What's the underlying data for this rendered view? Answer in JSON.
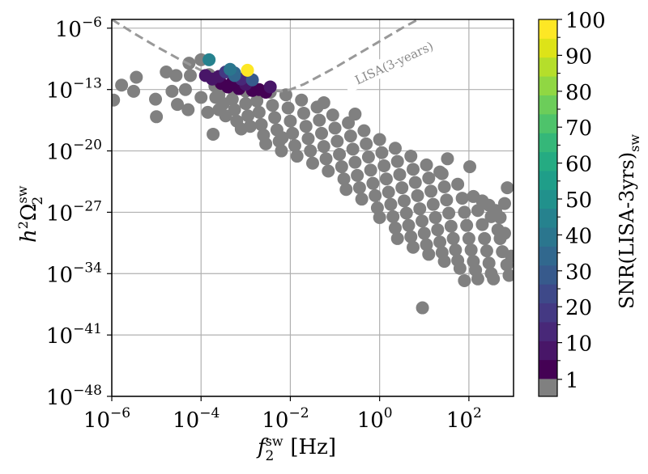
{
  "chart_data": {
    "type": "scatter",
    "title": "",
    "xlabel": "f_2^sw [Hz]",
    "xlabel_main": "f",
    "xlabel_sub": "2",
    "xlabel_sup": "sw",
    "xlabel_unit": "[Hz]",
    "ylabel": "h^2 Ω_2^sw",
    "ylabel_main": "h",
    "ylabel_sup1": "2",
    "ylabel_omega": "Ω",
    "ylabel_sub": "2",
    "ylabel_sup2": "sw",
    "xscale": "log",
    "yscale": "log",
    "xlim_log10": [
      -6,
      3
    ],
    "ylim_log10": [
      -48,
      -5
    ],
    "grid": true,
    "x_ticks": [
      {
        "base": "10",
        "exp": "−6",
        "log10": -6
      },
      {
        "base": "10",
        "exp": "−4",
        "log10": -4
      },
      {
        "base": "10",
        "exp": "−2",
        "log10": -2
      },
      {
        "base": "10",
        "exp": "0",
        "log10": 0
      },
      {
        "base": "10",
        "exp": "2",
        "log10": 2
      }
    ],
    "y_ticks": [
      {
        "base": "10",
        "exp": "−6",
        "log10": -6
      },
      {
        "base": "10",
        "exp": "−13",
        "log10": -13
      },
      {
        "base": "10",
        "exp": "−20",
        "log10": -20
      },
      {
        "base": "10",
        "exp": "−27",
        "log10": -27
      },
      {
        "base": "10",
        "exp": "−34",
        "log10": -34
      },
      {
        "base": "10",
        "exp": "−41",
        "log10": -41
      },
      {
        "base": "10",
        "exp": "−48",
        "log10": -48
      }
    ],
    "lisa_curve": {
      "label": "LISA(3-years)",
      "color": "#999999",
      "points_log10": [
        [
          -6.0,
          -5.0
        ],
        [
          -5.5,
          -6.6
        ],
        [
          -5.0,
          -8.1
        ],
        [
          -4.5,
          -9.5
        ],
        [
          -4.0,
          -10.8
        ],
        [
          -3.5,
          -11.9
        ],
        [
          -3.0,
          -12.7
        ],
        [
          -2.5,
          -13.1
        ],
        [
          -2.2,
          -13.2
        ],
        [
          -2.0,
          -13.0
        ],
        [
          -1.7,
          -12.4
        ],
        [
          -1.4,
          -11.6
        ],
        [
          -1.0,
          -10.5
        ],
        [
          -0.5,
          -9.0
        ],
        [
          0.0,
          -7.5
        ],
        [
          0.5,
          -6.0
        ],
        [
          0.9,
          -4.9
        ]
      ]
    },
    "colorbar": {
      "label_main": "SNR(LISA-3yrs)",
      "label_sub": "sw",
      "colormap": "viridis",
      "ticks": [
        "1",
        "10",
        "20",
        "30",
        "40",
        "50",
        "60",
        "70",
        "80",
        "90",
        "100"
      ],
      "tick_values": [
        1,
        10,
        20,
        30,
        40,
        50,
        60,
        70,
        80,
        90,
        100
      ],
      "below_threshold_color": "#808080",
      "band_colors": [
        "#808080",
        "#440154",
        "#481668",
        "#482878",
        "#443983",
        "#3e4989",
        "#375a8c",
        "#31688e",
        "#2b768e",
        "#26828e",
        "#21918c",
        "#1f9e89",
        "#25ab82",
        "#35b779",
        "#4ec36b",
        "#6ccd5a",
        "#90d743",
        "#b5de2b",
        "#dde318",
        "#fde725"
      ]
    },
    "gray_color": "#808080",
    "series_below_threshold": {
      "name": "SNR < 1",
      "points_log10": [
        [
          -5.96,
          -14.2
        ],
        [
          -5.78,
          -12.5
        ],
        [
          -5.51,
          -13.2
        ],
        [
          -5.45,
          -11.6
        ],
        [
          -5.02,
          -14.1
        ],
        [
          -5.0,
          -16.1
        ],
        [
          -4.78,
          -11.0
        ],
        [
          -4.65,
          -13.2
        ],
        [
          -4.56,
          -11.4
        ],
        [
          -4.53,
          -14.7
        ],
        [
          -4.27,
          -10.0
        ],
        [
          -4.35,
          -13.0
        ],
        [
          -4.24,
          -11.4
        ],
        [
          -4.29,
          -15.3
        ],
        [
          -4.0,
          -13.9
        ],
        [
          -3.82,
          -11.3
        ],
        [
          -4.0,
          -9.6
        ],
        [
          -3.67,
          -13.9
        ],
        [
          -3.6,
          -15.3
        ],
        [
          -3.73,
          -18.1
        ],
        [
          -3.85,
          -15.6
        ],
        [
          -3.69,
          -12.6
        ],
        [
          -3.6,
          -13.6
        ],
        [
          -3.5,
          -14.6
        ],
        [
          -3.45,
          -16.0
        ],
        [
          -3.3,
          -12.9
        ],
        [
          -3.3,
          -14.1
        ],
        [
          -3.25,
          -15.3
        ],
        [
          -3.2,
          -16.6
        ],
        [
          -3.1,
          -17.5
        ],
        [
          -3.0,
          -13.2
        ],
        [
          -3.0,
          -14.6
        ],
        [
          -2.95,
          -16.0
        ],
        [
          -2.9,
          -17.2
        ],
        [
          -2.8,
          -13.0
        ],
        [
          -2.75,
          -14.3
        ],
        [
          -2.7,
          -15.6
        ],
        [
          -2.65,
          -17.0
        ],
        [
          -2.6,
          -18.2
        ],
        [
          -2.55,
          -19.2
        ],
        [
          -2.45,
          -13.3
        ],
        [
          -2.4,
          -14.8
        ],
        [
          -2.35,
          -16.2
        ],
        [
          -2.3,
          -17.6
        ],
        [
          -2.25,
          -18.9
        ],
        [
          -2.2,
          -20.0
        ],
        [
          -2.1,
          -13.6
        ],
        [
          -2.05,
          -15.1
        ],
        [
          -2.0,
          -16.6
        ],
        [
          -1.95,
          -18.0
        ],
        [
          -1.9,
          -19.4
        ],
        [
          -1.85,
          -20.6
        ],
        [
          -1.75,
          -14.2
        ],
        [
          -1.7,
          -15.7
        ],
        [
          -1.65,
          -17.2
        ],
        [
          -1.6,
          -18.6
        ],
        [
          -1.55,
          -20.0
        ],
        [
          -1.5,
          -21.4
        ],
        [
          -1.4,
          -15.0
        ],
        [
          -1.35,
          -16.5
        ],
        [
          -1.3,
          -18.0
        ],
        [
          -1.25,
          -19.5
        ],
        [
          -1.2,
          -20.9
        ],
        [
          -1.15,
          -22.3
        ],
        [
          -1.05,
          -15.9
        ],
        [
          -1.0,
          -17.4
        ],
        [
          -0.95,
          -18.9
        ],
        [
          -0.9,
          -20.4
        ],
        [
          -0.85,
          -21.8
        ],
        [
          -0.8,
          -23.2
        ],
        [
          -0.75,
          -24.4
        ],
        [
          -0.7,
          -16.8
        ],
        [
          -0.65,
          -18.3
        ],
        [
          -0.6,
          -19.8
        ],
        [
          -0.55,
          -21.3
        ],
        [
          -0.5,
          -22.8
        ],
        [
          -0.45,
          -24.2
        ],
        [
          -0.4,
          -25.5
        ],
        [
          -0.35,
          -17.7
        ],
        [
          -0.3,
          -19.2
        ],
        [
          -0.25,
          -20.7
        ],
        [
          -0.2,
          -22.2
        ],
        [
          -0.15,
          -23.7
        ],
        [
          -0.1,
          -25.1
        ],
        [
          -0.05,
          -26.5
        ],
        [
          0.0,
          -27.6
        ],
        [
          0.0,
          -18.7
        ],
        [
          0.05,
          -20.2
        ],
        [
          0.1,
          -21.7
        ],
        [
          0.15,
          -23.2
        ],
        [
          0.2,
          -24.7
        ],
        [
          0.25,
          -26.1
        ],
        [
          0.3,
          -27.5
        ],
        [
          0.35,
          -28.8
        ],
        [
          0.4,
          -30.0
        ],
        [
          0.35,
          -19.7
        ],
        [
          0.4,
          -21.2
        ],
        [
          0.45,
          -22.7
        ],
        [
          0.5,
          -24.2
        ],
        [
          0.55,
          -25.7
        ],
        [
          0.6,
          -27.1
        ],
        [
          0.65,
          -28.5
        ],
        [
          0.7,
          -29.8
        ],
        [
          0.75,
          -31.0
        ],
        [
          0.7,
          -20.6
        ],
        [
          0.75,
          -22.1
        ],
        [
          0.8,
          -23.6
        ],
        [
          0.85,
          -25.1
        ],
        [
          0.9,
          -26.6
        ],
        [
          0.95,
          -28.0
        ],
        [
          1.0,
          -29.4
        ],
        [
          1.05,
          -30.7
        ],
        [
          1.1,
          -31.8
        ],
        [
          1.05,
          -21.6
        ],
        [
          1.1,
          -23.1
        ],
        [
          1.15,
          -24.6
        ],
        [
          1.2,
          -26.1
        ],
        [
          1.25,
          -27.6
        ],
        [
          1.3,
          -29.0
        ],
        [
          1.35,
          -30.4
        ],
        [
          1.4,
          -31.6
        ],
        [
          1.45,
          -32.6
        ],
        [
          1.4,
          -22.6
        ],
        [
          1.45,
          -24.1
        ],
        [
          1.5,
          -25.6
        ],
        [
          1.55,
          -27.1
        ],
        [
          1.6,
          -28.6
        ],
        [
          1.65,
          -30.0
        ],
        [
          1.7,
          -31.3
        ],
        [
          1.75,
          -32.5
        ],
        [
          1.8,
          -33.4
        ],
        [
          1.75,
          -23.8
        ],
        [
          1.85,
          -25.4
        ],
        [
          1.9,
          -27.0
        ],
        [
          1.95,
          -28.5
        ],
        [
          2.0,
          -30.0
        ],
        [
          2.05,
          -31.3
        ],
        [
          2.1,
          -32.6
        ],
        [
          2.15,
          -33.6
        ],
        [
          2.1,
          -25.2
        ],
        [
          2.2,
          -26.8
        ],
        [
          2.3,
          -28.4
        ],
        [
          2.35,
          -30.0
        ],
        [
          2.4,
          -31.4
        ],
        [
          2.45,
          -32.8
        ],
        [
          2.5,
          -34.0
        ],
        [
          2.45,
          -26.2
        ],
        [
          2.6,
          -26.8
        ],
        [
          2.7,
          -27.6
        ],
        [
          2.8,
          -26.0
        ],
        [
          2.7,
          -30.0
        ],
        [
          2.75,
          -31.5
        ],
        [
          2.85,
          -33.0
        ],
        [
          2.9,
          -34.2
        ],
        [
          2.95,
          -32.0
        ],
        [
          2.3,
          -25.7
        ],
        [
          2.5,
          -27.5
        ],
        [
          2.65,
          -29.0
        ],
        [
          2.8,
          -29.4
        ],
        [
          1.35,
          -22.4
        ],
        [
          2.55,
          -34.6
        ],
        [
          -2.18,
          -18.5
        ],
        [
          0.96,
          -37.9
        ],
        [
          1.52,
          -20.9
        ],
        [
          2.02,
          -21.8
        ],
        [
          2.86,
          -24.2
        ],
        [
          -0.55,
          -15.8
        ],
        [
          -1.25,
          -14.5
        ],
        [
          1.9,
          -34.8
        ],
        [
          2.2,
          -34.6
        ]
      ]
    },
    "series_snr": {
      "name": "SNR ≥ 1",
      "points": [
        {
          "log10_f": -3.9,
          "log10_h2omega": -11.4,
          "snr": 8
        },
        {
          "log10_f": -3.75,
          "log10_h2omega": -11.8,
          "snr": 6
        },
        {
          "log10_f": -3.6,
          "log10_h2omega": -11.5,
          "snr": 9
        },
        {
          "log10_f": -3.55,
          "log10_h2omega": -12.3,
          "snr": 3
        },
        {
          "log10_f": -3.45,
          "log10_h2omega": -11.0,
          "snr": 18
        },
        {
          "log10_f": -3.4,
          "log10_h2omega": -12.7,
          "snr": 4
        },
        {
          "log10_f": -3.3,
          "log10_h2omega": -12.2,
          "snr": 5
        },
        {
          "log10_f": -3.25,
          "log10_h2omega": -11.4,
          "snr": 35
        },
        {
          "log10_f": -3.15,
          "log10_h2omega": -12.9,
          "snr": 3
        },
        {
          "log10_f": -3.1,
          "log10_h2omega": -11.8,
          "snr": 12
        },
        {
          "log10_f": -3.0,
          "log10_h2omega": -12.4,
          "snr": 7
        },
        {
          "log10_f": -2.85,
          "log10_h2omega": -13.1,
          "snr": 4
        },
        {
          "log10_f": -2.85,
          "log10_h2omega": -11.9,
          "snr": 28
        },
        {
          "log10_f": -2.7,
          "log10_h2omega": -13.0,
          "snr": 5
        },
        {
          "log10_f": -2.55,
          "log10_h2omega": -13.3,
          "snr": 3
        },
        {
          "log10_f": -2.45,
          "log10_h2omega": -12.7,
          "snr": 9
        },
        {
          "log10_f": -3.82,
          "log10_h2omega": -9.6,
          "snr": 45
        },
        {
          "log10_f": -3.35,
          "log10_h2omega": -10.7,
          "snr": 40
        },
        {
          "log10_f": -3.25,
          "log10_h2omega": -11.1,
          "snr": 32
        },
        {
          "log10_f": -2.96,
          "log10_h2omega": -10.8,
          "snr": 100
        }
      ]
    }
  }
}
